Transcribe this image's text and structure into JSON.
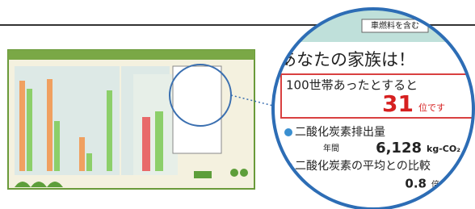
{
  "magnifier": {
    "tag": "車燃料を含む",
    "heading": "あなたの家族は！",
    "rank_intro": "100世帯あったとすると",
    "rank": "31",
    "rank_unit": "位です",
    "emission_label": "二酸化炭素排出量",
    "emission_period": "年間",
    "emission_value": "6,128",
    "emission_unit": "kg-CO₂",
    "comparison_label": "二酸化炭素の平均との比較",
    "comparison_value": "0.8",
    "comparison_unit": "倍"
  }
}
